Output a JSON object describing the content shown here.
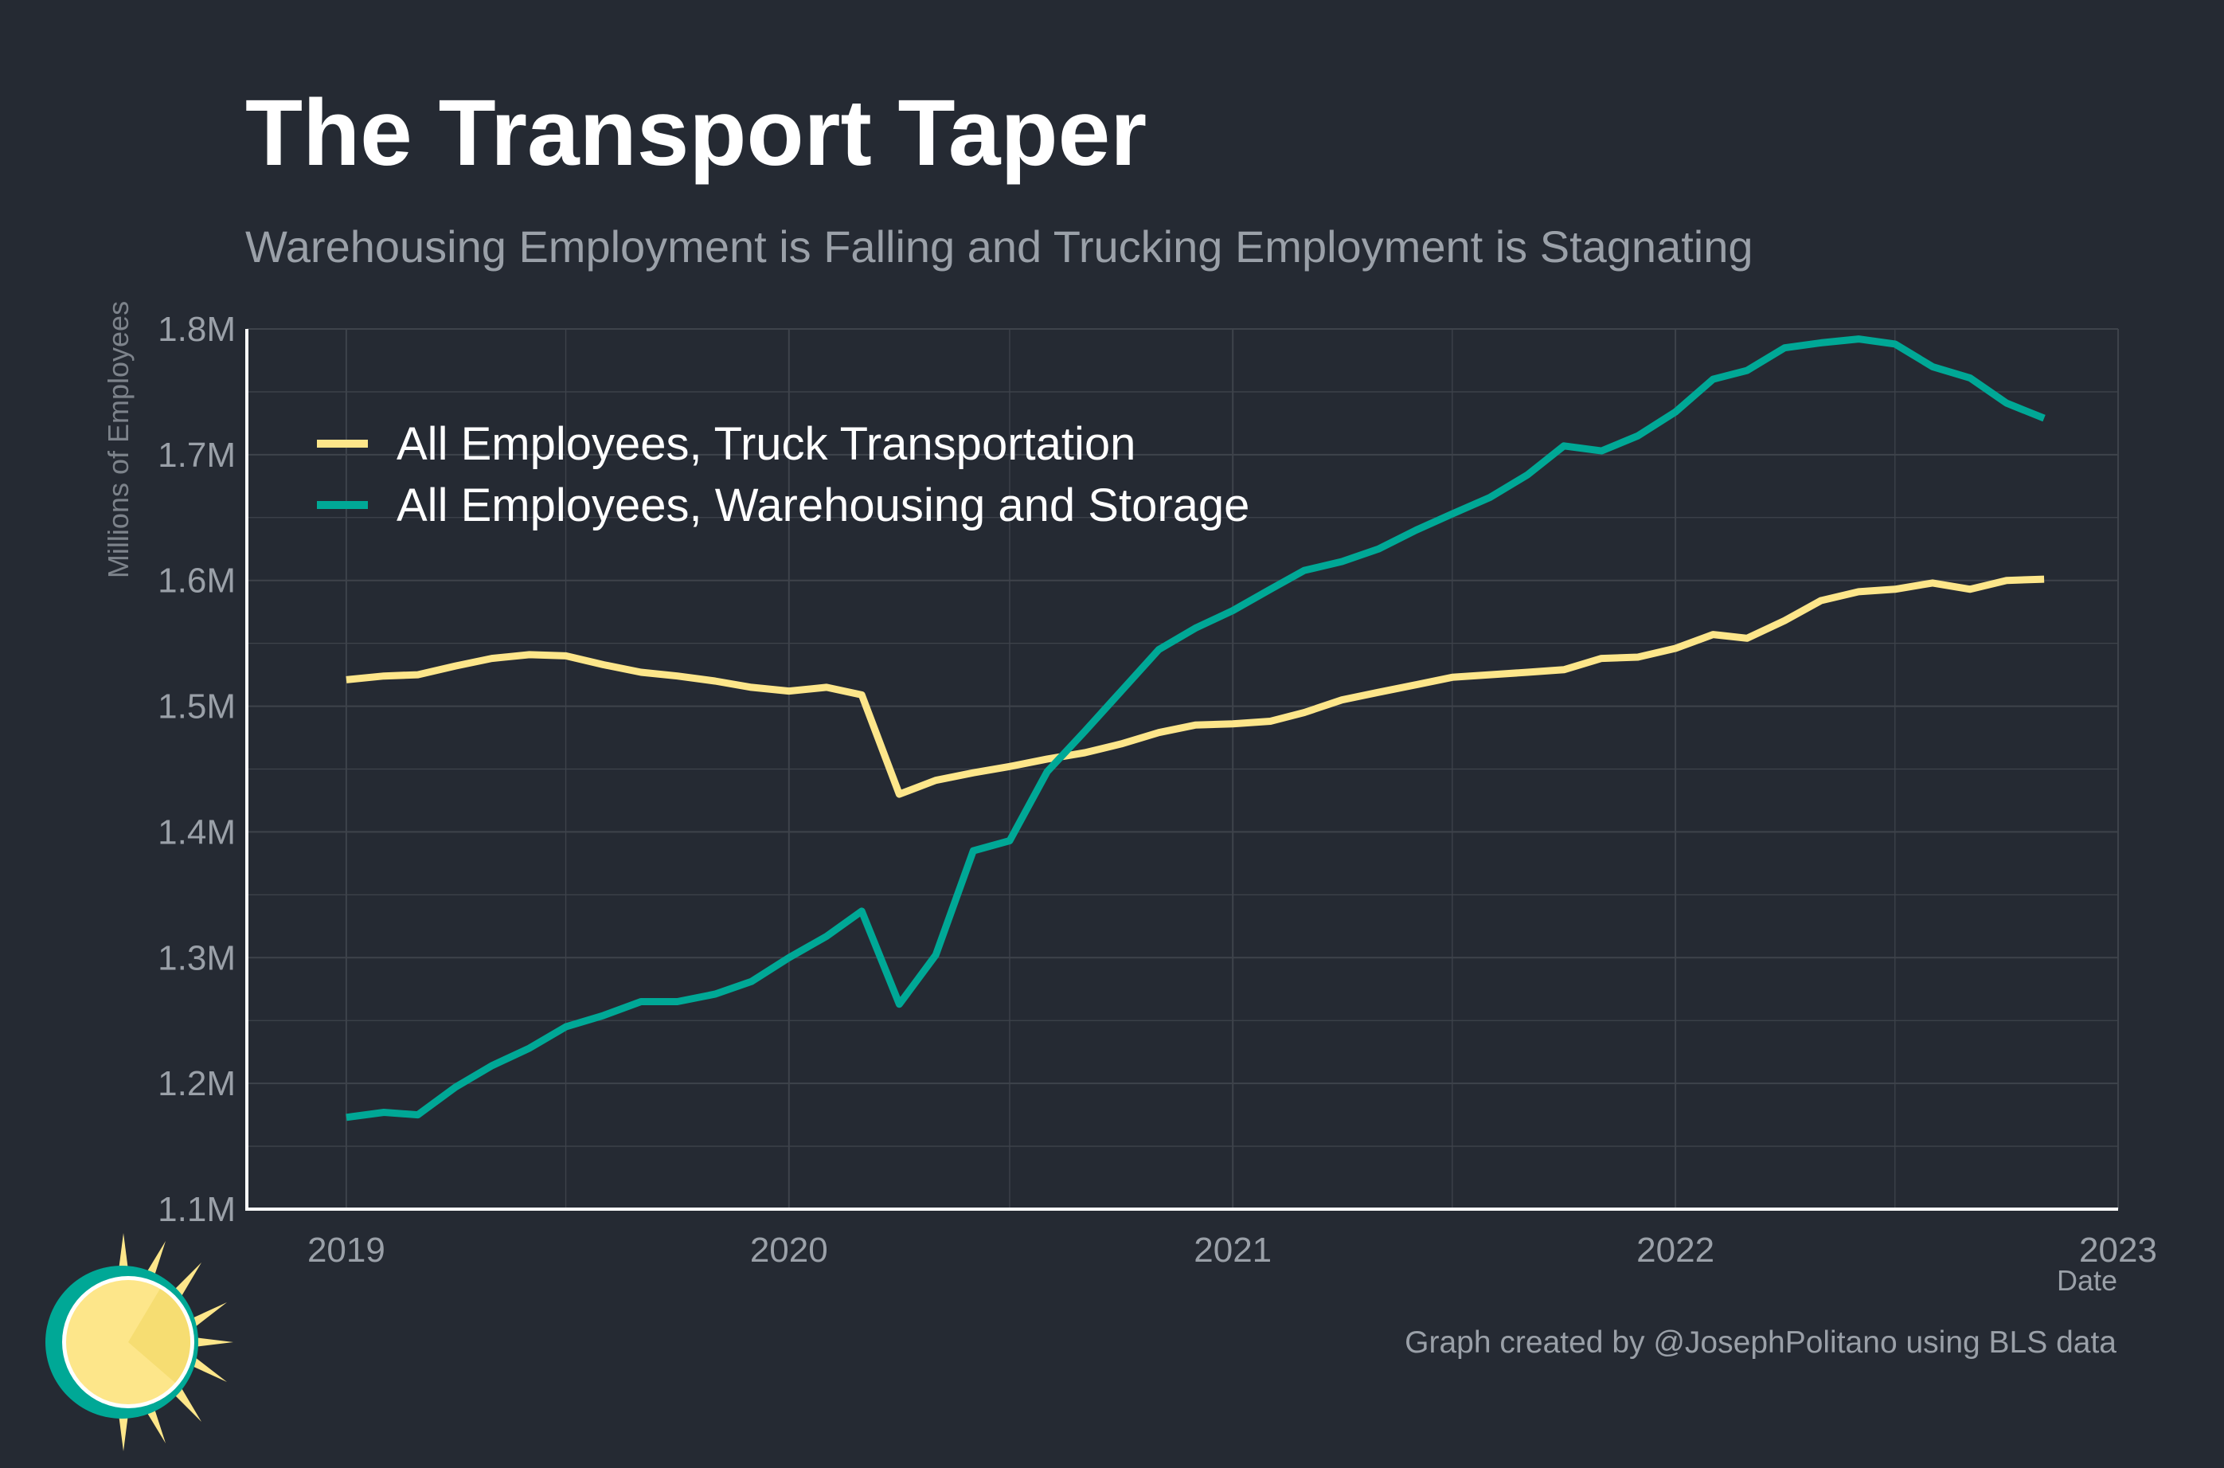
{
  "title": "The Transport Taper",
  "subtitle": "Warehousing Employment is Falling and Trucking Employment is Stagnating",
  "caption": "Graph created by @JosephPolitano using BLS data",
  "colors": {
    "background": "#252a33",
    "truck": "#fde68a",
    "warehouse": "#00a896",
    "grid": "#3e434b",
    "axis": "#ffffff",
    "tick_text": "#9aa0a8"
  },
  "chart_data": {
    "type": "line",
    "xlabel": "Date",
    "ylabel": "Millions of Employees",
    "xlim": [
      "2018-10-11",
      "2023-01-01"
    ],
    "ylim": [
      1.1,
      1.8
    ],
    "x_ticks": [
      "2019",
      "2020",
      "2021",
      "2022",
      "2023"
    ],
    "y_ticks": [
      "1.1M",
      "1.2M",
      "1.3M",
      "1.4M",
      "1.5M",
      "1.6M",
      "1.7M",
      "1.8M"
    ],
    "grid": true,
    "legend_position": "top-left",
    "x": [
      "2019-01",
      "2019-02",
      "2019-03",
      "2019-04",
      "2019-05",
      "2019-06",
      "2019-07",
      "2019-08",
      "2019-09",
      "2019-10",
      "2019-11",
      "2019-12",
      "2020-01",
      "2020-02",
      "2020-03",
      "2020-04",
      "2020-05",
      "2020-06",
      "2020-07",
      "2020-08",
      "2020-09",
      "2020-10",
      "2020-11",
      "2020-12",
      "2021-01",
      "2021-02",
      "2021-03",
      "2021-04",
      "2021-05",
      "2021-06",
      "2021-07",
      "2021-08",
      "2021-09",
      "2021-10",
      "2021-11",
      "2021-12",
      "2022-01",
      "2022-02",
      "2022-03",
      "2022-04",
      "2022-05",
      "2022-06",
      "2022-07",
      "2022-08",
      "2022-09",
      "2022-10",
      "2022-11"
    ],
    "series": [
      {
        "name": "All Employees, Truck Transportation",
        "color": "#fde68a",
        "values": [
          1.521,
          1.524,
          1.525,
          1.532,
          1.538,
          1.541,
          1.54,
          1.533,
          1.527,
          1.524,
          1.52,
          1.515,
          1.512,
          1.515,
          1.509,
          1.43,
          1.441,
          1.447,
          1.452,
          1.458,
          1.463,
          1.47,
          1.479,
          1.485,
          1.486,
          1.488,
          1.495,
          1.505,
          1.511,
          1.517,
          1.523,
          1.525,
          1.527,
          1.529,
          1.538,
          1.539,
          1.546,
          1.557,
          1.554,
          1.568,
          1.584,
          1.591,
          1.593,
          1.598,
          1.593,
          1.6,
          1.601
        ]
      },
      {
        "name": "All Employees, Warehousing and Storage",
        "color": "#00a896",
        "values": [
          1.173,
          1.177,
          1.175,
          1.197,
          1.214,
          1.228,
          1.245,
          1.254,
          1.265,
          1.265,
          1.271,
          1.281,
          1.3,
          1.317,
          1.337,
          1.263,
          1.302,
          1.385,
          1.393,
          1.448,
          1.48,
          1.512,
          1.545,
          1.562,
          1.576,
          1.593,
          1.608,
          1.615,
          1.625,
          1.64,
          1.653,
          1.666,
          1.684,
          1.707,
          1.703,
          1.715,
          1.734,
          1.76,
          1.767,
          1.785,
          1.789,
          1.792,
          1.788,
          1.77,
          1.761,
          1.741,
          1.729
        ]
      }
    ]
  }
}
